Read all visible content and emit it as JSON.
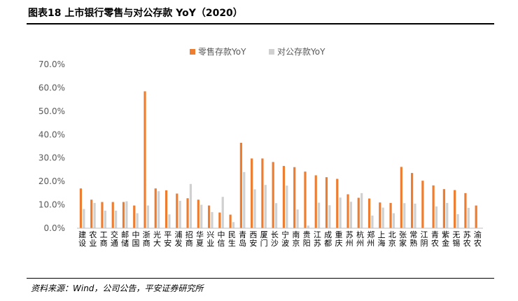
{
  "figure": {
    "title": "图表18   上市银行零售与对公存款 YoY（2020）",
    "source": "资料来源：Wind，公司公告，平安证券研究所"
  },
  "chart_data": {
    "type": "bar",
    "categories": [
      "建设",
      "农业",
      "工商",
      "交通",
      "邮储",
      "中国",
      "浙商",
      "光大",
      "平安",
      "浦发",
      "招商",
      "华夏",
      "兴业",
      "中信",
      "民生",
      "青岛",
      "西安",
      "厦门",
      "长沙",
      "宁波",
      "南京",
      "贵阳",
      "江苏",
      "成都",
      "重庆",
      "苏州",
      "杭州",
      "郑州",
      "上海",
      "北京",
      "张家",
      "常熟",
      "江阴",
      "青农",
      "紫金",
      "无锡",
      "苏农",
      "渝农"
    ],
    "series": [
      {
        "name": "零售存款YoY",
        "color": "#ED7D31",
        "values": [
          17.0,
          12.2,
          11.2,
          11.2,
          11.2,
          9.7,
          58.5,
          17.0,
          16.2,
          14.8,
          12.8,
          12.2,
          9.7,
          6.7,
          5.8,
          36.5,
          29.8,
          29.8,
          28.3,
          26.6,
          26.1,
          24.2,
          22.6,
          21.8,
          21.1,
          14.5,
          13.0,
          12.7,
          11.0,
          10.8,
          26.2,
          23.6,
          20.3,
          18.3,
          16.7,
          16.3,
          15.0,
          9.7
        ]
      },
      {
        "name": "对公存款YoY",
        "color": "#D0D0D0",
        "values": [
          8.2,
          10.8,
          7.5,
          7.5,
          11.5,
          6.4,
          9.7,
          15.8,
          5.9,
          11.7,
          18.9,
          10.0,
          6.9,
          13.4,
          2.6,
          24.0,
          16.6,
          18.5,
          10.7,
          18.2,
          8.0,
          1.1,
          10.9,
          9.8,
          13.1,
          11.3,
          15.0,
          5.4,
          8.8,
          6.4,
          10.7,
          10.5,
          0.0,
          9.3,
          10.8,
          6.0,
          8.7,
          0.0
        ]
      }
    ],
    "y_ticks": [
      "0.0%",
      "10.0%",
      "20.0%",
      "30.0%",
      "40.0%",
      "50.0%",
      "60.0%",
      "70.0%"
    ],
    "ylim": [
      0,
      70
    ],
    "y_format": "percent",
    "grid": false,
    "legend_position": "top-center"
  }
}
